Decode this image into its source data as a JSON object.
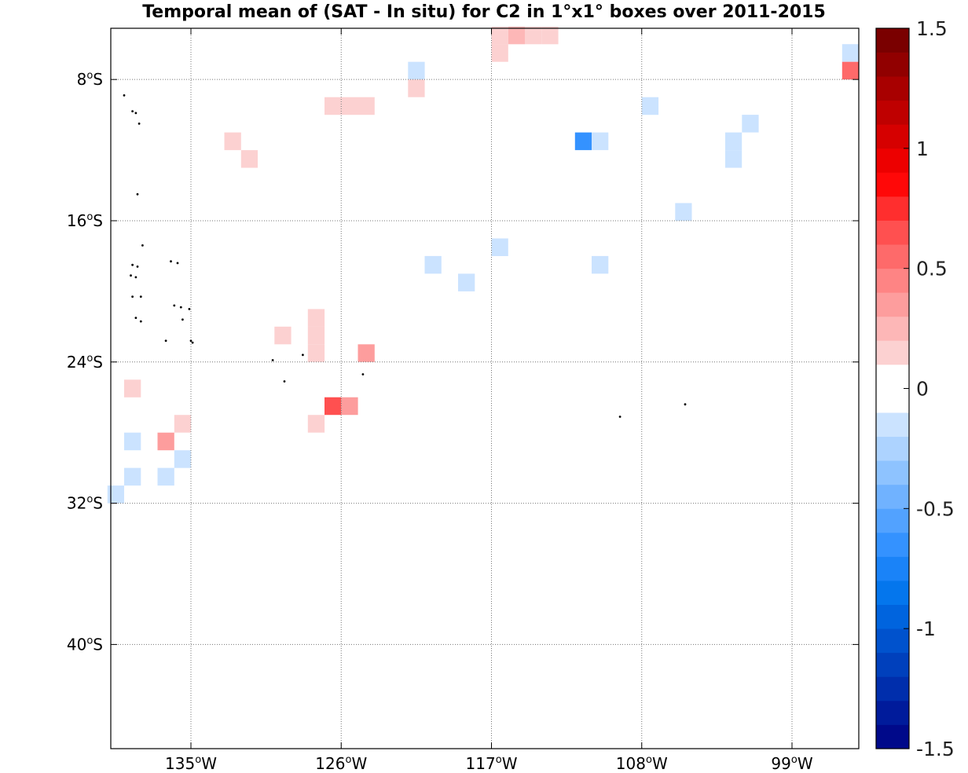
{
  "chart_data": {
    "type": "heatmap",
    "title": "Temporal mean of (SAT - In situ) for C2 in 1°x1° boxes over 2011-2015",
    "xlim": [
      -139.8,
      -95.0
    ],
    "ylim": [
      -45.9,
      -5.1
    ],
    "x_ticks": [
      {
        "value": -135,
        "label": "135",
        "hemi": "W"
      },
      {
        "value": -126,
        "label": "126",
        "hemi": "W"
      },
      {
        "value": -117,
        "label": "117",
        "hemi": "W"
      },
      {
        "value": -108,
        "label": "108",
        "hemi": "W"
      },
      {
        "value": -99,
        "label": "99",
        "hemi": "W"
      }
    ],
    "y_ticks": [
      {
        "value": -8,
        "label": "8",
        "hemi": "S"
      },
      {
        "value": -16,
        "label": "16",
        "hemi": "S"
      },
      {
        "value": -24,
        "label": "24",
        "hemi": "S"
      },
      {
        "value": -32,
        "label": "32",
        "hemi": "S"
      },
      {
        "value": -40,
        "label": "40",
        "hemi": "S"
      }
    ],
    "grid": true,
    "colorbar": {
      "range": [
        -1.5,
        1.5
      ],
      "levels": 30,
      "placement": "right",
      "ticks": [
        {
          "value": 1.5,
          "label": "1.5"
        },
        {
          "value": 1,
          "label": "1"
        },
        {
          "value": 0.5,
          "label": "0.5"
        },
        {
          "value": 0,
          "label": "0"
        },
        {
          "value": -0.5,
          "label": "-0.5"
        },
        {
          "value": -1,
          "label": "-1"
        },
        {
          "value": -1.5,
          "label": "-1.5"
        }
      ]
    },
    "cells": [
      {
        "lon": -116.5,
        "lat": -5.5,
        "value": 0.15
      },
      {
        "lon": -115.5,
        "lat": -5.5,
        "value": 0.25
      },
      {
        "lon": -114.5,
        "lat": -5.5,
        "value": 0.12
      },
      {
        "lon": -113.5,
        "lat": -5.5,
        "value": 0.12
      },
      {
        "lon": -116.5,
        "lat": -6.5,
        "value": 0.15
      },
      {
        "lon": -95.5,
        "lat": -6.5,
        "value": -0.12
      },
      {
        "lon": -95.5,
        "lat": -7.5,
        "value": 0.55
      },
      {
        "lon": -121.5,
        "lat": -7.5,
        "value": -0.12
      },
      {
        "lon": -121.5,
        "lat": -8.5,
        "value": 0.15
      },
      {
        "lon": -126.5,
        "lat": -9.5,
        "value": 0.12
      },
      {
        "lon": -125.5,
        "lat": -9.5,
        "value": 0.12
      },
      {
        "lon": -124.5,
        "lat": -9.5,
        "value": 0.12
      },
      {
        "lon": -107.5,
        "lat": -9.5,
        "value": -0.12
      },
      {
        "lon": -101.5,
        "lat": -10.5,
        "value": -0.12
      },
      {
        "lon": -111.5,
        "lat": -11.5,
        "value": -0.7
      },
      {
        "lon": -110.5,
        "lat": -11.5,
        "value": -0.12
      },
      {
        "lon": -102.5,
        "lat": -11.5,
        "value": -0.12
      },
      {
        "lon": -102.5,
        "lat": -12.5,
        "value": -0.12
      },
      {
        "lon": -132.5,
        "lat": -11.5,
        "value": 0.15
      },
      {
        "lon": -131.5,
        "lat": -12.5,
        "value": 0.15
      },
      {
        "lon": -105.5,
        "lat": -15.5,
        "value": -0.12
      },
      {
        "lon": -116.5,
        "lat": -17.5,
        "value": -0.12
      },
      {
        "lon": -120.5,
        "lat": -18.5,
        "value": -0.15
      },
      {
        "lon": -110.5,
        "lat": -18.5,
        "value": -0.15
      },
      {
        "lon": -118.5,
        "lat": -19.5,
        "value": -0.15
      },
      {
        "lon": -127.5,
        "lat": -21.5,
        "value": 0.15
      },
      {
        "lon": -129.5,
        "lat": -22.5,
        "value": 0.15
      },
      {
        "lon": -127.5,
        "lat": -22.5,
        "value": 0.15
      },
      {
        "lon": -127.5,
        "lat": -23.5,
        "value": 0.15
      },
      {
        "lon": -124.5,
        "lat": -23.5,
        "value": 0.35
      },
      {
        "lon": -138.5,
        "lat": -25.5,
        "value": 0.15
      },
      {
        "lon": -126.5,
        "lat": -26.5,
        "value": 0.65
      },
      {
        "lon": -125.5,
        "lat": -26.5,
        "value": 0.3
      },
      {
        "lon": -135.5,
        "lat": -27.5,
        "value": 0.15
      },
      {
        "lon": -127.5,
        "lat": -27.5,
        "value": 0.15
      },
      {
        "lon": -138.5,
        "lat": -28.5,
        "value": -0.12
      },
      {
        "lon": -136.5,
        "lat": -28.5,
        "value": 0.35
      },
      {
        "lon": -135.5,
        "lat": -29.5,
        "value": -0.15
      },
      {
        "lon": -138.5,
        "lat": -30.5,
        "value": -0.12
      },
      {
        "lon": -136.5,
        "lat": -30.5,
        "value": -0.12
      },
      {
        "lon": -139.5,
        "lat": -31.5,
        "value": -0.15
      }
    ],
    "land_dots": [
      [
        -139.0,
        -8.9
      ],
      [
        -138.5,
        -9.8
      ],
      [
        -138.3,
        -9.9
      ],
      [
        -138.1,
        -10.5
      ],
      [
        -138.2,
        -14.5
      ],
      [
        -137.9,
        -17.4
      ],
      [
        -138.5,
        -18.5
      ],
      [
        -138.2,
        -18.6
      ],
      [
        -138.6,
        -19.1
      ],
      [
        -138.3,
        -19.2
      ],
      [
        -136.2,
        -18.3
      ],
      [
        -135.8,
        -18.4
      ],
      [
        -138.5,
        -20.3
      ],
      [
        -138.0,
        -20.3
      ],
      [
        -136.0,
        -20.8
      ],
      [
        -135.6,
        -20.9
      ],
      [
        -135.1,
        -21.0
      ],
      [
        -138.3,
        -21.5
      ],
      [
        -138.0,
        -21.7
      ],
      [
        -135.5,
        -21.6
      ],
      [
        -136.5,
        -22.8
      ],
      [
        -135.0,
        -22.8
      ],
      [
        -134.9,
        -22.9
      ],
      [
        -130.1,
        -23.9
      ],
      [
        -129.4,
        -25.1
      ],
      [
        -128.3,
        -23.6
      ],
      [
        -124.7,
        -24.7
      ],
      [
        -109.3,
        -27.1
      ],
      [
        -105.4,
        -26.4
      ]
    ]
  }
}
